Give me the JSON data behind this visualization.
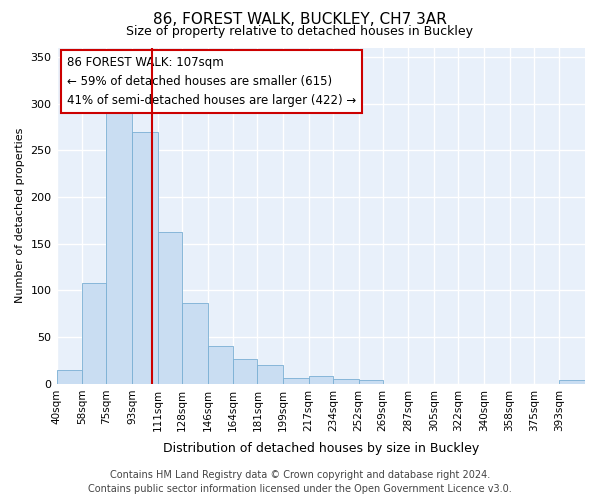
{
  "title": "86, FOREST WALK, BUCKLEY, CH7 3AR",
  "subtitle": "Size of property relative to detached houses in Buckley",
  "xlabel": "Distribution of detached houses by size in Buckley",
  "ylabel": "Number of detached properties",
  "footer_line1": "Contains HM Land Registry data © Crown copyright and database right 2024.",
  "footer_line2": "Contains public sector information licensed under the Open Government Licence v3.0.",
  "annotation_line1": "86 FOREST WALK: 107sqm",
  "annotation_line2": "← 59% of detached houses are smaller (615)",
  "annotation_line3": "41% of semi-detached houses are larger (422) →",
  "bar_edges": [
    40,
    58,
    75,
    93,
    111,
    128,
    146,
    164,
    181,
    199,
    217,
    234,
    252,
    269,
    287,
    305,
    322,
    340,
    358,
    375,
    393
  ],
  "bar_heights": [
    15,
    108,
    293,
    270,
    163,
    87,
    41,
    27,
    20,
    6,
    8,
    5,
    4,
    0,
    0,
    0,
    0,
    0,
    0,
    0,
    4
  ],
  "bar_color": "#c9ddf2",
  "bar_edge_color": "#7aafd4",
  "vline_color": "#cc0000",
  "vline_x": 107,
  "ylim": [
    0,
    360
  ],
  "yticks": [
    0,
    50,
    100,
    150,
    200,
    250,
    300,
    350
  ],
  "fig_bg_color": "#ffffff",
  "plot_bg_color": "#e8f0fa",
  "grid_color": "#ffffff",
  "annotation_box_bg": "#ffffff",
  "annotation_box_edge": "#cc0000",
  "tick_labels": [
    "40sqm",
    "58sqm",
    "75sqm",
    "93sqm",
    "111sqm",
    "128sqm",
    "146sqm",
    "164sqm",
    "181sqm",
    "199sqm",
    "217sqm",
    "234sqm",
    "252sqm",
    "269sqm",
    "287sqm",
    "305sqm",
    "322sqm",
    "340sqm",
    "358sqm",
    "375sqm",
    "393sqm"
  ],
  "title_fontsize": 11,
  "subtitle_fontsize": 9,
  "ylabel_fontsize": 8,
  "xlabel_fontsize": 9,
  "tick_fontsize": 7.5,
  "ytick_fontsize": 8,
  "annotation_fontsize": 8.5,
  "footer_fontsize": 7
}
